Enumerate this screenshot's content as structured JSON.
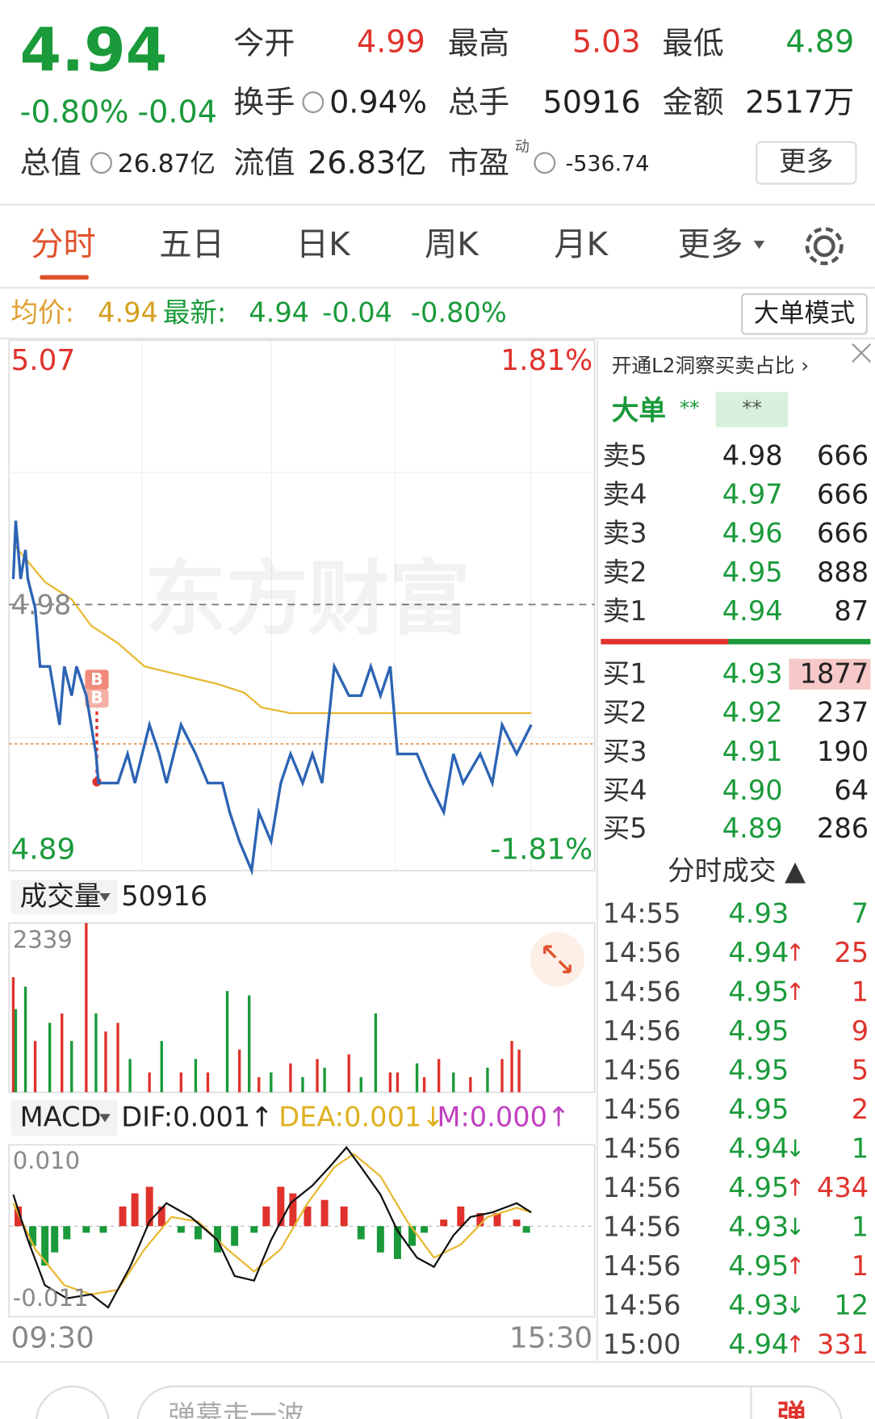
{
  "header": {
    "price": "4.94",
    "change_pct": "-0.80%",
    "change": "-0.04",
    "open_label": "今开",
    "open": "4.99",
    "high_label": "最高",
    "high": "5.03",
    "low_label": "最低",
    "low": "4.89",
    "turnover_label": "换手",
    "turnover": "0.94%",
    "volume_label": "总手",
    "volume": "50916",
    "amount_label": "金额",
    "amount": "2517万",
    "mcap_label": "总值",
    "mcap": "26.87亿",
    "float_label": "流值",
    "float": "26.83亿",
    "pe_label": "市盈",
    "pe_sup": "动",
    "pe": "-536.74",
    "more": "更多"
  },
  "tabs": [
    "分时",
    "五日",
    "日K",
    "周K",
    "月K",
    "更多"
  ],
  "info": {
    "avg_label": "均价:",
    "avg": "4.94",
    "latest_label": "最新:",
    "latest": "4.94",
    "change": "-0.04",
    "pct": "-0.80%",
    "mode_button": "大单模式"
  },
  "intraday": {
    "top_label": "5.07",
    "bottom_label": "4.89",
    "top_pct": "1.81%",
    "bottom_pct": "-1.81%",
    "ref_label": "4.98",
    "watermark": "东方财富",
    "buy_marker": "B",
    "xlim": [
      0,
      240
    ],
    "ylim": [
      4.89,
      5.07
    ],
    "price": {
      "color": "#2d64b4",
      "x": [
        1,
        2,
        4,
        6,
        7,
        10,
        12,
        16,
        20,
        22,
        25,
        27,
        31,
        35,
        36,
        44,
        48,
        51,
        57,
        61,
        64,
        70,
        76,
        81,
        87,
        90,
        94,
        99,
        102,
        107,
        111,
        115,
        120,
        124,
        128,
        133,
        139,
        144,
        148,
        152,
        156,
        159,
        167,
        172,
        178,
        182,
        186,
        193,
        198,
        202,
        208,
        214
      ],
      "y": [
        4.99,
        5.01,
        4.99,
        5.0,
        4.99,
        4.98,
        4.96,
        4.96,
        4.94,
        4.96,
        4.95,
        4.96,
        4.95,
        4.93,
        4.92,
        4.92,
        4.93,
        4.92,
        4.94,
        4.93,
        4.92,
        4.94,
        4.93,
        4.92,
        4.92,
        4.91,
        4.9,
        4.89,
        4.91,
        4.9,
        4.92,
        4.93,
        4.92,
        4.93,
        4.92,
        4.96,
        4.95,
        4.95,
        4.96,
        4.95,
        4.96,
        4.93,
        4.93,
        4.92,
        4.91,
        4.93,
        4.92,
        4.93,
        4.92,
        4.94,
        4.93,
        4.94
      ]
    },
    "average": {
      "color": "#e8b830",
      "x": [
        1,
        7,
        14,
        25,
        33,
        44,
        55,
        70,
        85,
        96,
        103,
        115,
        144,
        182,
        214
      ],
      "y": [
        5.002,
        4.996,
        4.989,
        4.983,
        4.974,
        4.968,
        4.96,
        4.957,
        4.954,
        4.951,
        4.946,
        4.944,
        4.944,
        4.944,
        4.944
      ]
    }
  },
  "volume": {
    "label": "成交量",
    "total": "50916",
    "top_label": "2339",
    "ylim": [
      0,
      2339
    ],
    "up_color": "#e0322c",
    "down_color": "#1a9a3a",
    "x": [
      1,
      2,
      6,
      10,
      16,
      21,
      25,
      31,
      35,
      39,
      44,
      49,
      57,
      62,
      70,
      76,
      81,
      89,
      94,
      98,
      102,
      107,
      115,
      120,
      126,
      129,
      139,
      144,
      150,
      156,
      159,
      167,
      170,
      176,
      182,
      189,
      196,
      202,
      206,
      209
    ],
    "values": [
      1590,
      1150,
      1460,
      710,
      960,
      1090,
      710,
      2339,
      1090,
      840,
      960,
      460,
      275,
      710,
      275,
      460,
      275,
      1400,
      590,
      1340,
      210,
      275,
      400,
      210,
      460,
      340,
      525,
      210,
      1090,
      275,
      275,
      400,
      210,
      460,
      275,
      210,
      340,
      460,
      710,
      590
    ],
    "direction": [
      "up",
      "down",
      "down",
      "up",
      "down",
      "up",
      "down",
      "up",
      "down",
      "up",
      "up",
      "down",
      "up",
      "down",
      "up",
      "down",
      "up",
      "down",
      "up",
      "down",
      "up",
      "down",
      "up",
      "down",
      "up",
      "down",
      "up",
      "down",
      "down",
      "up",
      "up",
      "down",
      "up",
      "up",
      "down",
      "up",
      "down",
      "up",
      "up",
      "up"
    ]
  },
  "macd": {
    "label": "MACD",
    "dif_text": "DIF:0.001↑",
    "dea_text": "DEA:0.001↓",
    "m_text": "M:0.000↑",
    "top_label": "0.010",
    "bottom_label": "-0.011",
    "ylim": [
      -0.0138,
      0.0124
    ],
    "dif": {
      "color": "#111111",
      "x": [
        1,
        7,
        14,
        23,
        33,
        40,
        49,
        57,
        64,
        74,
        85,
        92,
        100,
        107,
        115,
        124,
        131,
        138,
        144,
        152,
        159,
        167,
        174,
        182,
        189,
        198,
        208,
        214
      ],
      "y": [
        0.0048,
        -0.0021,
        -0.009,
        -0.011,
        -0.0104,
        -0.0124,
        -0.0062,
        0.0007,
        0.0035,
        0.0014,
        -0.0021,
        -0.0076,
        -0.0083,
        -0.0021,
        0.0035,
        0.0062,
        0.009,
        0.012,
        0.009,
        0.0048,
        -0.0007,
        -0.0048,
        -0.0062,
        -0.0014,
        0.0014,
        0.0021,
        0.0035,
        0.0021
      ]
    },
    "dea": {
      "color": "#e8b830",
      "x": [
        1,
        10,
        22,
        33,
        44,
        55,
        66,
        77,
        89,
        100,
        111,
        122,
        133,
        141,
        152,
        163,
        174,
        185,
        196,
        208,
        214
      ],
      "y": [
        0.0035,
        -0.0035,
        -0.009,
        -0.0104,
        -0.0097,
        -0.0035,
        0.0014,
        0.0007,
        -0.0035,
        -0.0069,
        -0.0035,
        0.0035,
        0.009,
        0.011,
        0.0076,
        0.0007,
        -0.0048,
        -0.0028,
        0.0014,
        0.0028,
        0.0021
      ]
    },
    "hist": {
      "x": [
        3,
        9,
        14,
        18,
        23,
        31,
        38,
        46,
        51,
        57,
        62,
        70,
        77,
        85,
        92,
        100,
        105,
        111,
        116,
        122,
        129,
        137,
        144,
        152,
        159,
        165,
        170,
        178,
        185,
        193,
        200,
        208,
        212
      ],
      "values": [
        0.003,
        -0.003,
        -0.006,
        -0.004,
        -0.002,
        -0.001,
        -0.001,
        0.003,
        0.005,
        0.006,
        0.003,
        -0.001,
        -0.002,
        -0.004,
        -0.003,
        -0.001,
        0.003,
        0.006,
        0.005,
        0.003,
        0.004,
        0.003,
        -0.002,
        -0.004,
        -0.005,
        -0.003,
        -0.001,
        0.001,
        0.003,
        0.002,
        0.002,
        0.001,
        -0.001
      ]
    }
  },
  "time_start": "09:30",
  "time_end": "15:30",
  "panel": {
    "promo": "开通L2洞察买卖占比 ›",
    "big_label": "大单",
    "big_a": "**",
    "big_b": "**",
    "asks": [
      {
        "label": "卖5",
        "price": "4.98",
        "qty": "666",
        "price_color": "#222222"
      },
      {
        "label": "卖4",
        "price": "4.97",
        "qty": "666",
        "price_color": "#1a9a3a"
      },
      {
        "label": "卖3",
        "price": "4.96",
        "qty": "666",
        "price_color": "#1a9a3a"
      },
      {
        "label": "卖2",
        "price": "4.95",
        "qty": "888",
        "price_color": "#1a9a3a"
      },
      {
        "label": "卖1",
        "price": "4.94",
        "qty": "87",
        "price_color": "#1a9a3a"
      }
    ],
    "bids": [
      {
        "label": "买1",
        "price": "4.93",
        "qty": "1877",
        "price_color": "#1a9a3a"
      },
      {
        "label": "买2",
        "price": "4.92",
        "qty": "237",
        "price_color": "#1a9a3a"
      },
      {
        "label": "买3",
        "price": "4.91",
        "qty": "190",
        "price_color": "#1a9a3a"
      },
      {
        "label": "买4",
        "price": "4.90",
        "qty": "64",
        "price_color": "#1a9a3a"
      },
      {
        "label": "买5",
        "price": "4.89",
        "qty": "286",
        "price_color": "#1a9a3a"
      }
    ],
    "trades_title": "分时成交 ▲",
    "trades": [
      {
        "time": "14:55",
        "price": "4.93",
        "dir": "",
        "qty": "7",
        "qty_color": "#1a9a3a"
      },
      {
        "time": "14:56",
        "price": "4.94",
        "dir": "↑",
        "qty": "25",
        "qty_color": "#e0322c"
      },
      {
        "time": "14:56",
        "price": "4.95",
        "dir": "↑",
        "qty": "1",
        "qty_color": "#e0322c"
      },
      {
        "time": "14:56",
        "price": "4.95",
        "dir": "",
        "qty": "9",
        "qty_color": "#e0322c"
      },
      {
        "time": "14:56",
        "price": "4.95",
        "dir": "",
        "qty": "5",
        "qty_color": "#e0322c"
      },
      {
        "time": "14:56",
        "price": "4.95",
        "dir": "",
        "qty": "2",
        "qty_color": "#e0322c"
      },
      {
        "time": "14:56",
        "price": "4.94",
        "dir": "↓",
        "qty": "1",
        "qty_color": "#1a9a3a"
      },
      {
        "time": "14:56",
        "price": "4.95",
        "dir": "↑",
        "qty": "434",
        "qty_color": "#e0322c"
      },
      {
        "time": "14:56",
        "price": "4.93",
        "dir": "↓",
        "qty": "1",
        "qty_color": "#1a9a3a"
      },
      {
        "time": "14:56",
        "price": "4.95",
        "dir": "↑",
        "qty": "1",
        "qty_color": "#e0322c"
      },
      {
        "time": "14:56",
        "price": "4.93",
        "dir": "↓",
        "qty": "12",
        "qty_color": "#1a9a3a"
      },
      {
        "time": "15:00",
        "price": "4.94",
        "dir": "↑",
        "qty": "331",
        "qty_color": "#e0322c"
      }
    ]
  },
  "bottom": {
    "input_placeholder": "弹幕走一波",
    "send": "弹"
  }
}
